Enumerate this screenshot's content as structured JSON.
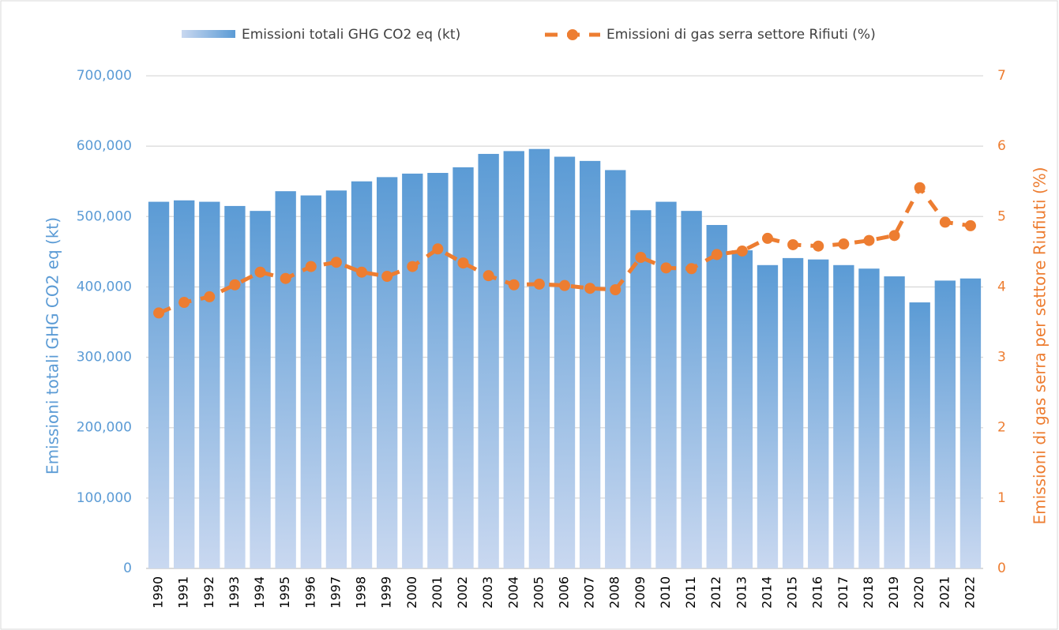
{
  "chart_data": {
    "type": "bar_line",
    "y_label": "Emissioni totali GHG CO2 eq (kt)",
    "y2_label": "Emissioni di gas serra per settore Riufiuti (%)",
    "categories": [
      "1990",
      "1991",
      "1992",
      "1993",
      "1994",
      "1995",
      "1996",
      "1997",
      "1998",
      "1999",
      "2000",
      "2001",
      "2002",
      "2003",
      "2004",
      "2005",
      "2006",
      "2007",
      "2008",
      "2009",
      "2010",
      "2011",
      "2012",
      "2013",
      "2014",
      "2015",
      "2016",
      "2017",
      "2018",
      "2019",
      "2020",
      "2021",
      "2022"
    ],
    "series": [
      {
        "name": "Emissioni totali  GHG CO2 eq (kt)",
        "type": "bar",
        "color": "#5b9bd5",
        "values": [
          521000,
          523000,
          521000,
          515000,
          508000,
          536000,
          530000,
          537000,
          550000,
          556000,
          561000,
          562000,
          570000,
          589000,
          593000,
          596000,
          585000,
          579000,
          566000,
          509000,
          521000,
          508000,
          488000,
          452000,
          431000,
          441000,
          439000,
          431000,
          426000,
          415000,
          378000,
          409000,
          412000
        ]
      },
      {
        "name": "Emissioni di gas serra settore Rifiuti (%)",
        "type": "line",
        "axis": "y2",
        "color": "#ed7d31",
        "values": [
          3.63,
          3.78,
          3.86,
          4.03,
          4.21,
          4.12,
          4.29,
          4.35,
          4.21,
          4.15,
          4.29,
          4.54,
          4.34,
          4.16,
          4.03,
          4.04,
          4.02,
          3.98,
          3.96,
          4.42,
          4.27,
          4.26,
          4.46,
          4.51,
          4.69,
          4.6,
          4.58,
          4.61,
          4.66,
          4.73,
          5.41,
          4.92,
          4.87
        ]
      }
    ],
    "ylim": [
      0,
      700000
    ],
    "yticks": [
      0,
      {
        "value": 100000,
        "label": "100,000"
      },
      {
        "value": 200000,
        "label": "200,000"
      },
      {
        "value": 300000,
        "label": "300,000"
      },
      {
        "value": 400000,
        "label": "400,000"
      },
      {
        "value": 500000,
        "label": "500,000"
      },
      {
        "value": 600000,
        "label": "600,000"
      },
      {
        "value": 700000,
        "label": "700,000"
      }
    ],
    "y2lim": [
      0,
      7
    ],
    "y2ticks": [
      0,
      1,
      2,
      3,
      4,
      5,
      6,
      7
    ],
    "grid": true,
    "legend": "top"
  }
}
